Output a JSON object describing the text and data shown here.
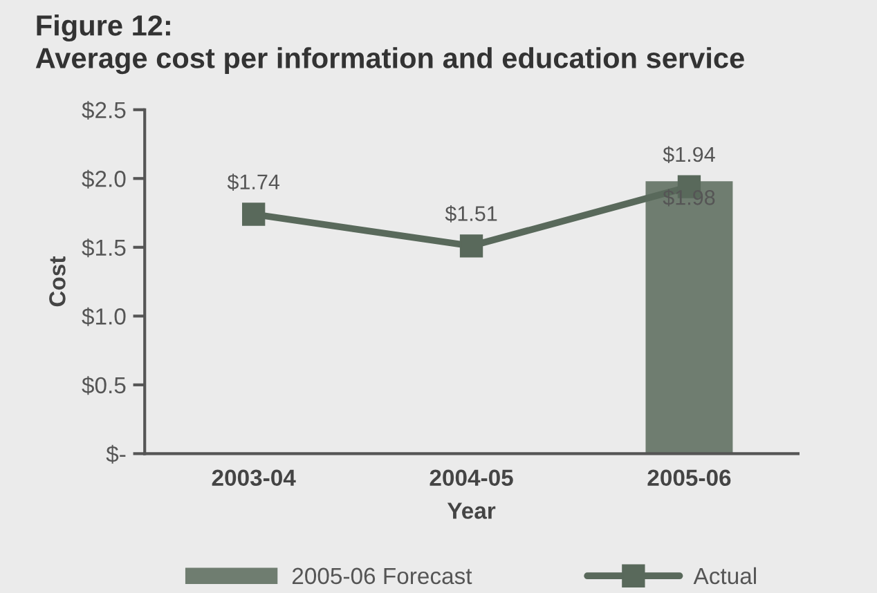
{
  "chart_data": {
    "type": "bar",
    "title": "Figure 12:",
    "subtitle": "Average cost per information and education service",
    "xlabel": "Year",
    "ylabel": "Cost",
    "categories": [
      "2003-04",
      "2004-05",
      "2005-06"
    ],
    "series": [
      {
        "name": "2005-06 Forecast",
        "color": "#6f7d70",
        "values": [
          null,
          null,
          1.98
        ],
        "value_labels": [
          null,
          null,
          "$1.98"
        ]
      },
      {
        "name": "Actual",
        "type": "line",
        "color": "#59695b",
        "marker": "square",
        "values": [
          1.74,
          1.51,
          1.94
        ],
        "value_labels": [
          "$1.74",
          "$1.51",
          "$1.94"
        ]
      }
    ],
    "ylim": [
      0,
      2.5
    ],
    "yticks": [
      {
        "value": 0,
        "label": "$-"
      },
      {
        "value": 0.5,
        "label": "$0.5"
      },
      {
        "value": 1.0,
        "label": "$1.0"
      },
      {
        "value": 1.5,
        "label": "$1.5"
      },
      {
        "value": 2.0,
        "label": "$2.0"
      },
      {
        "value": 2.5,
        "label": "$2.5"
      }
    ],
    "legend": "bottom",
    "grid": false
  }
}
